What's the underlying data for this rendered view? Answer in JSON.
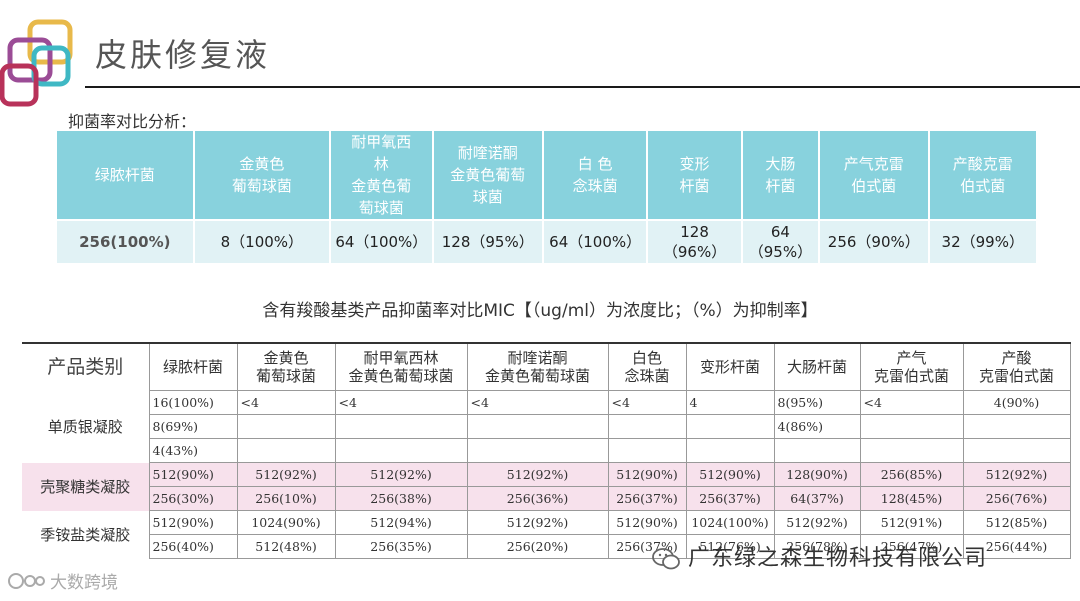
{
  "title": "皮肤修复液",
  "section1_label": "抑菌率对比分析：",
  "table1": {
    "headers": [
      "绿脓杆菌",
      "金黄色\n葡萄球菌",
      "耐甲氧西\n林\n金黄色葡\n萄球菌",
      "耐喹诺酮\n金黄色葡萄\n球菌",
      "白 色\n念珠菌",
      "变形\n杆菌",
      "大肠\n杆菌",
      "产气克雷\n伯式菌",
      "产酸克雷\n伯式菌"
    ],
    "values": [
      "256(100%)",
      "8（100%）",
      "64（100%）",
      "128（95%）",
      "64（100%）",
      "128\n（96%）",
      "64\n（95%）",
      "256（90%）",
      "32（99%）"
    ]
  },
  "section2_caption": "含有羧酸基类产品抑菌率对比MIC【（ug/ml）为浓度比；（%）为抑制率】",
  "table2": {
    "category_header": "产品类别",
    "headers": [
      "绿脓杆菌",
      "金黄色\n葡萄球菌",
      "耐甲氧西林\n金黄色葡萄球菌",
      "耐喹诺酮\n金黄色葡萄球菌",
      "白色\n念珠菌",
      "变形杆菌",
      "大肠杆菌",
      "产气\n克雷伯式菌",
      "产酸\n克雷伯式菌"
    ],
    "groups": [
      {
        "name": "单质银凝胶",
        "rows": [
          [
            "16(100%)",
            "<4",
            "<4",
            "<4",
            "<4",
            "4",
            "8(95%)",
            "<4",
            "4(90%)"
          ],
          [
            "8(69%)",
            "",
            "",
            "",
            "",
            "",
            "4(86%)",
            "",
            ""
          ],
          [
            "4(43%)",
            "",
            "",
            "",
            "",
            "",
            "",
            "",
            ""
          ]
        ]
      },
      {
        "name": "壳聚糖类凝胶",
        "rows": [
          [
            "512(90%)",
            "512(92%)",
            "512(92%)",
            "512(92%)",
            "512(90%)",
            "512(90%)",
            "128(90%)",
            "256(85%)",
            "512(92%)"
          ],
          [
            "256(30%)",
            "256(10%)",
            "256(38%)",
            "256(36%)",
            "256(37%)",
            "256(37%)",
            "64(37%)",
            "128(45%)",
            "256(76%)"
          ]
        ]
      },
      {
        "name": "季铵盐类凝胶",
        "rows": [
          [
            "512(90%)",
            "1024(90%)",
            "512(94%)",
            "512(92%)",
            "512(90%)",
            "1024(100%)",
            "512(92%)",
            "512(91%)",
            "512(85%)"
          ],
          [
            "256(40%)",
            "512(48%)",
            "256(35%)",
            "256(20%)",
            "256(37%)",
            "512(76%)",
            "256(78%)",
            "256(47%)",
            "256(44%)"
          ]
        ]
      }
    ]
  },
  "watermark_right": "广东绿之森生物科技有限公司",
  "watermark_left": "大数跨境",
  "colors": {
    "header_teal": "#88d2dd",
    "row_light": "#e1f2f5",
    "pink_band": "#f7e1ec"
  }
}
